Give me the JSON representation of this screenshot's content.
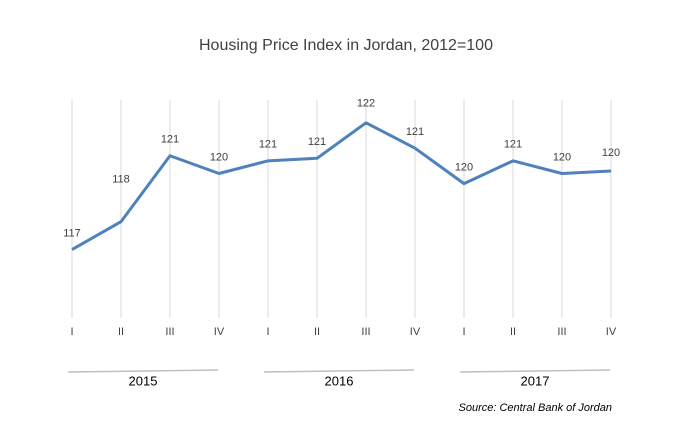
{
  "chart_data": {
    "type": "line",
    "title": "Housing Price Index in Jordan, 2012=100",
    "categories": [
      "I",
      "II",
      "III",
      "IV",
      "I",
      "II",
      "III",
      "IV",
      "I",
      "II",
      "III",
      "IV"
    ],
    "groups": [
      {
        "label": "2015",
        "span": 4
      },
      {
        "label": "2016",
        "span": 4
      },
      {
        "label": "2017",
        "span": 4
      }
    ],
    "series": [
      {
        "name": "Housing Price Index",
        "color": "#4f81bd",
        "values": [
          117.0,
          118.1,
          120.7,
          120.0,
          120.5,
          120.6,
          122.0,
          121.0,
          119.6,
          120.5,
          120.0,
          120.1
        ],
        "value_labels": [
          "117",
          "118",
          "121",
          "120",
          "121",
          "121",
          "122",
          "121",
          "120",
          "121",
          "120",
          "120"
        ]
      }
    ],
    "ylim": [
      114.3,
      122.9
    ],
    "grid": true,
    "source": "Source: Central Bank of Jordan"
  }
}
